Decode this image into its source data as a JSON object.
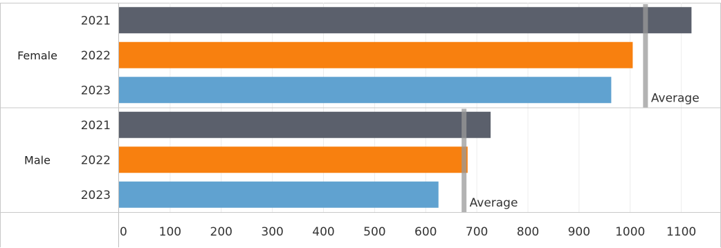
{
  "chart_data": {
    "type": "bar",
    "orientation": "horizontal",
    "x_ticks": [
      0,
      100,
      200,
      300,
      400,
      500,
      600,
      700,
      800,
      900,
      1000,
      1100
    ],
    "xlim": [
      0,
      1175
    ],
    "grid": true,
    "groups": [
      {
        "name": "Female",
        "average": 1030,
        "average_label": "Average",
        "bars": [
          {
            "category": "2021",
            "value": 1120
          },
          {
            "category": "2022",
            "value": 1005
          },
          {
            "category": "2023",
            "value": 963
          }
        ]
      },
      {
        "name": "Male",
        "average": 675,
        "average_label": "Average",
        "bars": [
          {
            "category": "2021",
            "value": 727
          },
          {
            "category": "2022",
            "value": 682
          },
          {
            "category": "2023",
            "value": 625
          }
        ]
      }
    ],
    "colors": {
      "2021": "#5b606c",
      "2022": "#f8800f",
      "2023": "#60a2d0",
      "average_line": "#999999"
    }
  }
}
